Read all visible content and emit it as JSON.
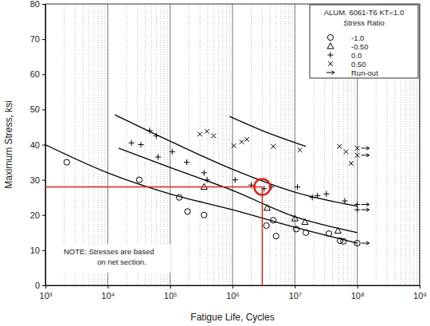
{
  "chart_data": {
    "type": "scatter",
    "x_label": "Fatigue Life, Cycles",
    "y_label": "Maximum Stress, ksi",
    "legend_title": [
      "ALUM. 6061-T6 KT=1.0",
      "Stress Ratio"
    ],
    "note": [
      "NOTE: Stresses are based",
      "on net section."
    ],
    "log": "x",
    "grid": "x",
    "legend": "upper right",
    "xlim": [
      1000,
      1000000000
    ],
    "xticks": [
      {
        "value": 1000,
        "label": "10³"
      },
      {
        "value": 10000,
        "label": "10⁴"
      },
      {
        "value": 100000,
        "label": "10⁵"
      },
      {
        "value": 1000000,
        "label": "10⁶"
      },
      {
        "value": 10000000,
        "label": "10⁷"
      },
      {
        "value": 100000000,
        "label": "10⁸"
      },
      {
        "value": 1000000000,
        "label": "10⁹"
      }
    ],
    "ylim": [
      0,
      80
    ],
    "yticks": [
      0,
      10,
      20,
      30,
      40,
      50,
      60,
      70,
      80
    ],
    "series": [
      {
        "name": "-1.0",
        "marker": "circle",
        "color": "#000000",
        "x": [
          2200,
          32000,
          140000,
          190000,
          350000,
          3500000,
          4500000,
          5000000,
          10500000,
          15000000,
          35000000,
          53000000,
          60000000,
          100000000
        ],
        "values": [
          35,
          30,
          25,
          21,
          20,
          17,
          18.5,
          14,
          16,
          15,
          14.7,
          12.7,
          12.5,
          12
        ]
      },
      {
        "name": "-0.50",
        "marker": "triangle",
        "color": "#000000",
        "x": [
          350000,
          3600000,
          10000000,
          14500000,
          49000000
        ],
        "values": [
          28,
          22,
          19,
          18,
          15.5
        ]
      },
      {
        "name": "0.0",
        "marker": "plus",
        "color": "#000000",
        "x": [
          24000,
          34000,
          47000,
          60000,
          64000,
          108000,
          185000,
          350000,
          390000,
          1100000,
          2000000,
          3200000,
          4200000,
          11000000,
          19000000,
          23000000,
          32000000,
          63000000,
          100000000,
          100000000
        ],
        "values": [
          40.5,
          40,
          44,
          42.5,
          36.5,
          38,
          35,
          32,
          30,
          30,
          28.5,
          27.5,
          28,
          28,
          25,
          25.5,
          26,
          24,
          23,
          21.5
        ]
      },
      {
        "name": "0.50",
        "marker": "x",
        "color": "#000000",
        "x": [
          300000,
          390000,
          500000,
          1050000,
          1400000,
          1700000,
          4500000,
          12000000,
          52000000,
          66000000,
          80000000,
          100000000,
          100000000
        ],
        "values": [
          43,
          43.8,
          42.5,
          39.7,
          40.8,
          41.5,
          39.5,
          38.5,
          39.5,
          38,
          34.7,
          39,
          37
        ]
      },
      {
        "name": "Run-out",
        "marker": "arrow",
        "color": "#000000",
        "x": [
          100000000,
          100000000,
          100000000,
          100000000,
          100000000
        ],
        "values": [
          39,
          37,
          23,
          21.5,
          12
        ]
      }
    ],
    "fit_lines": [
      {
        "color": "#000000",
        "x": [
          1000,
          10000,
          100000,
          1000000,
          10000000,
          100000000
        ],
        "values": [
          40,
          32,
          26,
          21.5,
          16.5,
          12
        ]
      },
      {
        "color": "#000000",
        "x": [
          15000,
          100000,
          1000000,
          10000000,
          100000000
        ],
        "values": [
          39,
          33.5,
          27,
          19.5,
          15
        ]
      },
      {
        "color": "#000000",
        "x": [
          13000,
          100000,
          1000000,
          10000000,
          100000000
        ],
        "values": [
          48.5,
          41,
          33,
          26.5,
          22.5
        ]
      },
      {
        "color": "#000000",
        "x": [
          900000,
          3000000,
          15000000
        ],
        "values": [
          48,
          44,
          39.5
        ]
      }
    ],
    "reference_point": {
      "x": 3000000,
      "y": 28,
      "color": "#e32119"
    }
  }
}
